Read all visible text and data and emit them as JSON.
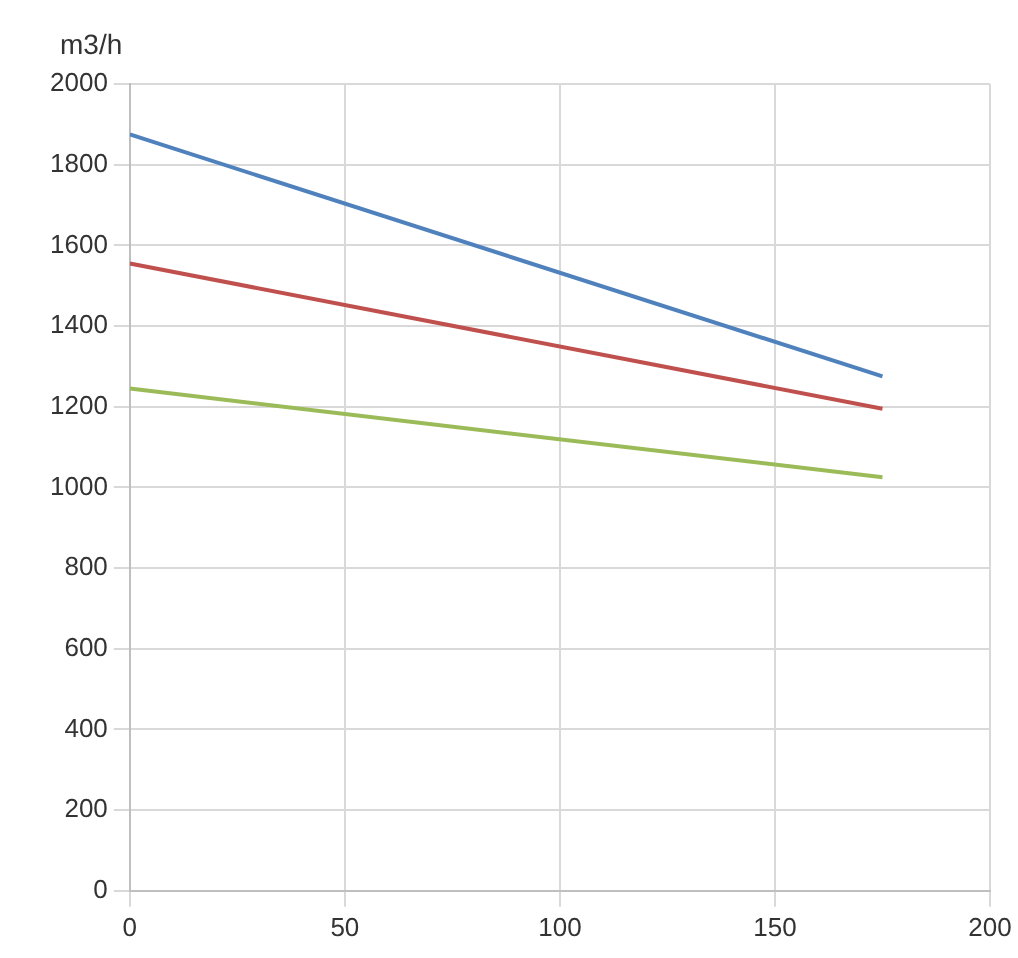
{
  "chart_data": {
    "type": "line",
    "ylabel": "m3/h",
    "x": [
      0,
      175
    ],
    "series": [
      {
        "color": "#4f81bd",
        "values": [
          1875,
          1275
        ]
      },
      {
        "color": "#c0504d",
        "values": [
          1555,
          1195
        ]
      },
      {
        "color": "#9bbb59",
        "values": [
          1245,
          1025
        ]
      }
    ],
    "xlim": [
      0,
      200
    ],
    "xticks": [
      0,
      50,
      100,
      150,
      200
    ],
    "ylim": [
      0,
      2000
    ],
    "yticks": [
      0,
      200,
      400,
      600,
      800,
      1000,
      1200,
      1400,
      1600,
      1800,
      2000
    ],
    "grid": true,
    "legend": false,
    "marker": "none",
    "line_style": "solid"
  }
}
